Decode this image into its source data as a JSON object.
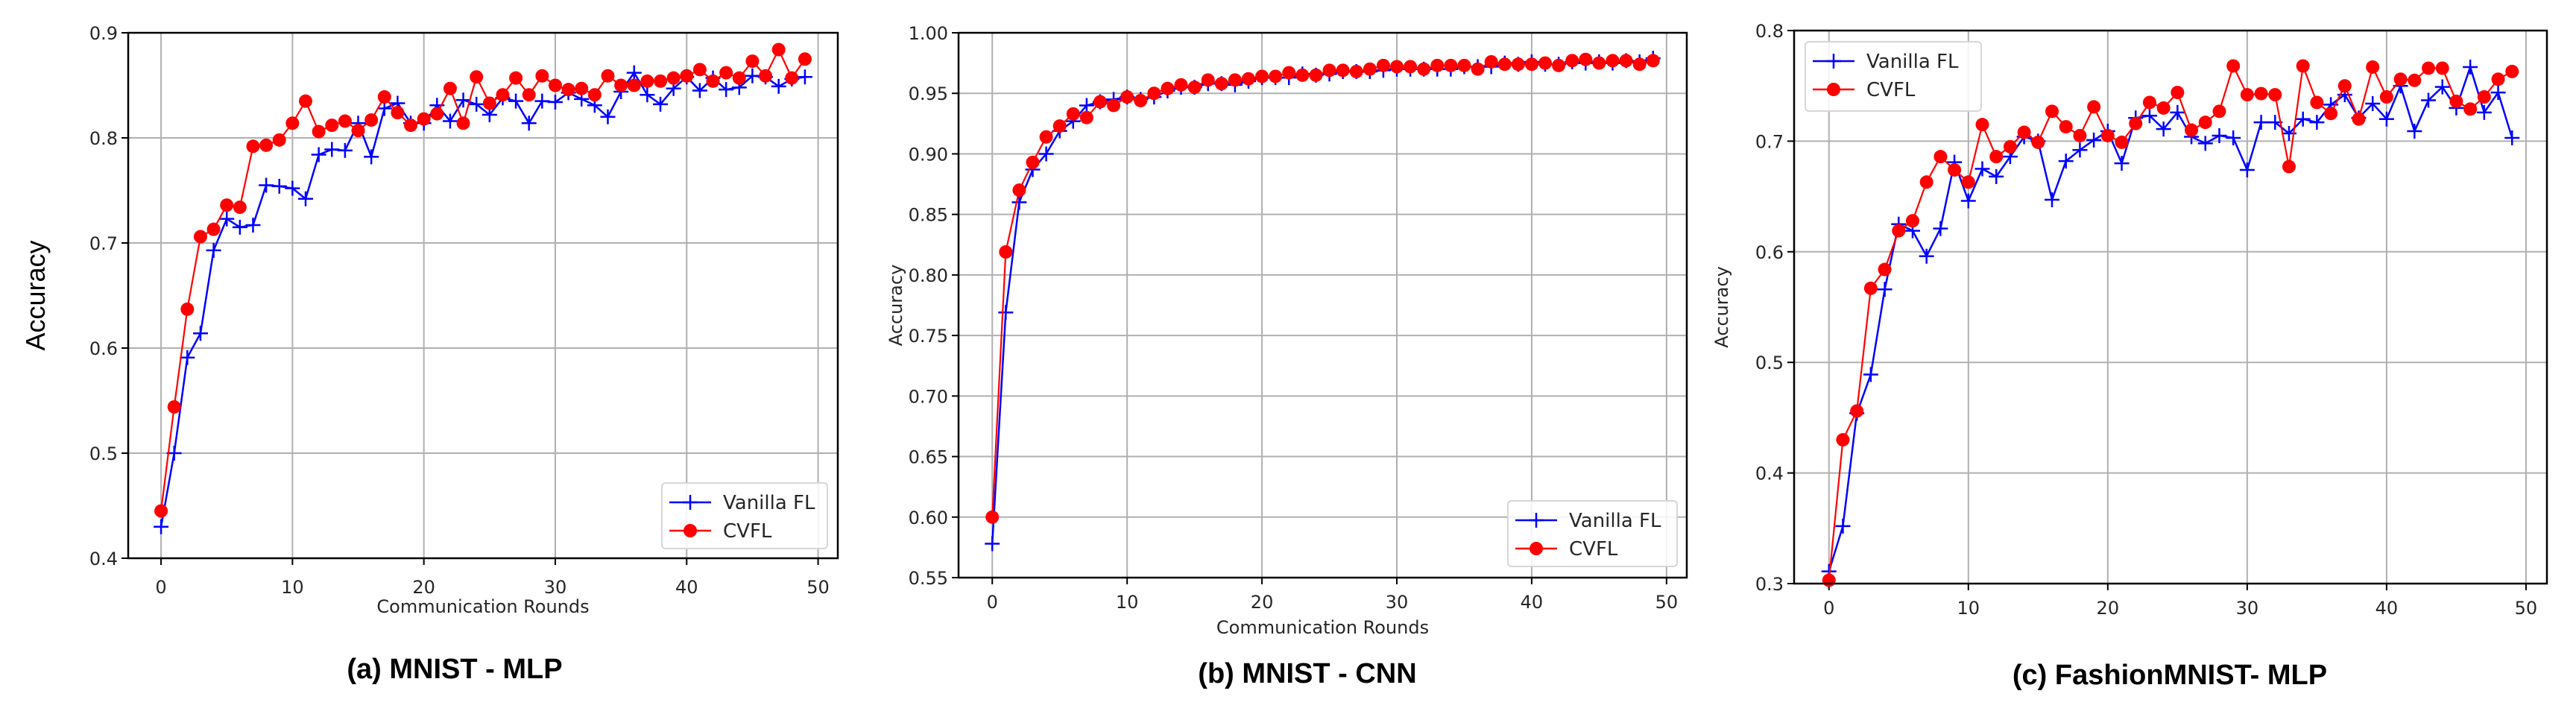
{
  "colors": {
    "vanilla": "#0000ff",
    "cvfl": "#ff0000",
    "grid": "#b0b0b0"
  },
  "chart_data": [
    {
      "type": "line",
      "caption": "(a) MNIST - MLP",
      "xlabel": "Communication Rounds",
      "ylabel": "Accuracy",
      "xlim": [
        -2.5,
        51.5
      ],
      "ylim": [
        0.4,
        0.9
      ],
      "xticks": [
        "0",
        "10",
        "20",
        "30",
        "40",
        "50"
      ],
      "yticks": [
        "0.4",
        "0.5",
        "0.6",
        "0.7",
        "0.8",
        "0.9"
      ],
      "grid": true,
      "legend_position": "lower-right",
      "series": [
        {
          "name": "Vanilla FL",
          "marker": "plus",
          "values": [
            0.43,
            0.5,
            0.591,
            0.614,
            0.693,
            0.723,
            0.715,
            0.717,
            0.755,
            0.754,
            0.752,
            0.742,
            0.784,
            0.789,
            0.788,
            0.814,
            0.782,
            0.828,
            0.833,
            0.814,
            0.814,
            0.831,
            0.816,
            0.836,
            0.832,
            0.822,
            0.838,
            0.835,
            0.814,
            0.835,
            0.834,
            0.843,
            0.837,
            0.831,
            0.82,
            0.844,
            0.862,
            0.841,
            0.832,
            0.847,
            0.858,
            0.845,
            0.857,
            0.846,
            0.848,
            0.859,
            0.858,
            0.849,
            0.856,
            0.858
          ]
        },
        {
          "name": "CVFL",
          "marker": "circle",
          "values": [
            0.445,
            0.544,
            0.637,
            0.706,
            0.713,
            0.736,
            0.734,
            0.792,
            0.793,
            0.798,
            0.814,
            0.835,
            0.806,
            0.812,
            0.816,
            0.807,
            0.817,
            0.839,
            0.824,
            0.812,
            0.818,
            0.823,
            0.847,
            0.814,
            0.858,
            0.833,
            0.841,
            0.857,
            0.841,
            0.859,
            0.85,
            0.846,
            0.847,
            0.841,
            0.859,
            0.85,
            0.85,
            0.854,
            0.854,
            0.857,
            0.859,
            0.865,
            0.854,
            0.862,
            0.857,
            0.873,
            0.859,
            0.884,
            0.857,
            0.875
          ]
        }
      ]
    },
    {
      "type": "line",
      "caption": "(b) MNIST - CNN",
      "xlabel": "Communication Rounds",
      "ylabel": "Accuracy",
      "xlim": [
        -2.5,
        51.5
      ],
      "ylim": [
        0.55,
        1.0
      ],
      "xticks": [
        "0",
        "10",
        "20",
        "30",
        "40",
        "50"
      ],
      "yticks": [
        "0.55",
        "0.60",
        "0.65",
        "0.70",
        "0.75",
        "0.80",
        "0.85",
        "0.90",
        "0.95",
        "1.00"
      ],
      "grid": true,
      "legend_position": "lower-right",
      "series": [
        {
          "name": "Vanilla FL",
          "marker": "plus",
          "values": [
            0.578,
            0.769,
            0.86,
            0.887,
            0.9,
            0.919,
            0.927,
            0.94,
            0.943,
            0.945,
            0.947,
            0.945,
            0.947,
            0.952,
            0.955,
            0.955,
            0.958,
            0.958,
            0.957,
            0.96,
            0.963,
            0.963,
            0.963,
            0.966,
            0.965,
            0.966,
            0.968,
            0.968,
            0.968,
            0.969,
            0.97,
            0.97,
            0.97,
            0.97,
            0.97,
            0.972,
            0.972,
            0.972,
            0.975,
            0.974,
            0.976,
            0.974,
            0.974,
            0.976,
            0.975,
            0.976,
            0.975,
            0.977,
            0.976,
            0.979
          ]
        },
        {
          "name": "CVFL",
          "marker": "circle",
          "values": [
            0.6,
            0.819,
            0.87,
            0.893,
            0.914,
            0.923,
            0.933,
            0.93,
            0.943,
            0.94,
            0.947,
            0.944,
            0.95,
            0.954,
            0.957,
            0.955,
            0.961,
            0.958,
            0.961,
            0.962,
            0.964,
            0.964,
            0.967,
            0.965,
            0.965,
            0.969,
            0.969,
            0.968,
            0.97,
            0.973,
            0.972,
            0.972,
            0.97,
            0.973,
            0.973,
            0.973,
            0.97,
            0.976,
            0.974,
            0.974,
            0.974,
            0.975,
            0.973,
            0.977,
            0.978,
            0.975,
            0.977,
            0.977,
            0.974,
            0.977
          ]
        }
      ]
    },
    {
      "type": "line",
      "caption": "(c) FashionMNIST- MLP",
      "xlabel": "",
      "ylabel": "Accuracy",
      "xlim": [
        -2.5,
        51.5
      ],
      "ylim": [
        0.3,
        0.8
      ],
      "xticks": [
        "0",
        "10",
        "20",
        "30",
        "40",
        "50"
      ],
      "yticks": [
        "0.3",
        "0.4",
        "0.5",
        "0.6",
        "0.7",
        "0.8"
      ],
      "grid": true,
      "legend_position": "upper-left",
      "series": [
        {
          "name": "Vanilla FL",
          "marker": "plus",
          "values": [
            0.311,
            0.352,
            0.454,
            0.489,
            0.566,
            0.625,
            0.619,
            0.596,
            0.621,
            0.681,
            0.646,
            0.675,
            0.668,
            0.686,
            0.704,
            0.7,
            0.647,
            0.682,
            0.692,
            0.701,
            0.709,
            0.68,
            0.721,
            0.723,
            0.711,
            0.726,
            0.704,
            0.698,
            0.705,
            0.703,
            0.674,
            0.717,
            0.717,
            0.707,
            0.72,
            0.717,
            0.733,
            0.742,
            0.721,
            0.734,
            0.72,
            0.75,
            0.709,
            0.737,
            0.749,
            0.73,
            0.767,
            0.726,
            0.744,
            0.703
          ]
        },
        {
          "name": "CVFL",
          "marker": "circle",
          "values": [
            0.303,
            0.43,
            0.456,
            0.567,
            0.584,
            0.619,
            0.628,
            0.663,
            0.686,
            0.674,
            0.663,
            0.715,
            0.686,
            0.695,
            0.708,
            0.699,
            0.727,
            0.713,
            0.705,
            0.731,
            0.705,
            0.699,
            0.716,
            0.735,
            0.73,
            0.744,
            0.71,
            0.717,
            0.727,
            0.768,
            0.742,
            0.743,
            0.742,
            0.677,
            0.768,
            0.735,
            0.725,
            0.75,
            0.72,
            0.767,
            0.74,
            0.756,
            0.755,
            0.766,
            0.766,
            0.736,
            0.729,
            0.74,
            0.756,
            0.763
          ]
        }
      ]
    }
  ]
}
